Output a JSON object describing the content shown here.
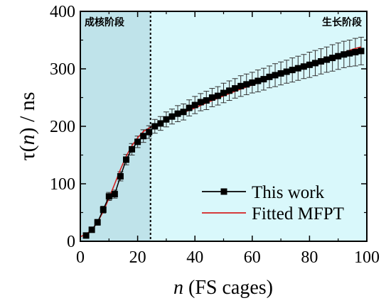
{
  "chart_data": {
    "type": "line",
    "xlim": [
      0,
      100
    ],
    "ylim": [
      0,
      400
    ],
    "xticks": [
      0,
      20,
      40,
      60,
      80,
      100
    ],
    "yticks": [
      0,
      100,
      200,
      300,
      400
    ],
    "x_minor_step": 10,
    "y_minor_step": 50,
    "xlabel_var": "n",
    "xlabel_rest": " (FS cages)",
    "ylabel_pre": "τ(",
    "ylabel_var": "n",
    "ylabel_post": ") / ns",
    "regions": [
      {
        "label": "成核阶段",
        "x_start": 0,
        "x_end": 24.5,
        "color": "#bfe3ea"
      },
      {
        "label": "生长阶段",
        "x_start": 24.5,
        "x_end": 100,
        "color": "#d9f8fb"
      }
    ],
    "divider_x": 24.5,
    "legend_position": "bottom-right",
    "series": [
      {
        "name": "This work",
        "marker": "square",
        "color": "#000000",
        "x": [
          2,
          4,
          6,
          8,
          10,
          12,
          14,
          16,
          18,
          20,
          22,
          24,
          26,
          28,
          30,
          32,
          34,
          36,
          38,
          40,
          42,
          44,
          46,
          48,
          50,
          52,
          54,
          56,
          58,
          60,
          62,
          64,
          66,
          68,
          70,
          72,
          74,
          76,
          78,
          80,
          82,
          84,
          86,
          88,
          90,
          92,
          94,
          96,
          98
        ],
        "y": [
          10,
          20,
          33,
          55,
          78,
          82,
          113,
          142,
          160,
          173,
          183,
          190,
          200,
          205,
          212,
          217,
          222,
          225,
          232,
          237,
          242,
          245,
          250,
          253,
          258,
          262,
          266,
          270,
          273,
          276,
          279,
          282,
          286,
          289,
          292,
          295,
          298,
          301,
          304,
          307,
          310,
          313,
          316,
          319,
          322,
          325,
          327,
          329,
          331
        ],
        "error": [
          4,
          4,
          5,
          6,
          7,
          7,
          8,
          9,
          10,
          10,
          11,
          11,
          12,
          12,
          13,
          13,
          14,
          14,
          14,
          15,
          15,
          16,
          16,
          16,
          17,
          17,
          17,
          18,
          18,
          18,
          19,
          19,
          19,
          20,
          20,
          20,
          21,
          21,
          21,
          22,
          22,
          22,
          22,
          23,
          23,
          23,
          23,
          24,
          24
        ]
      },
      {
        "name": "Fitted MFPT",
        "color": "#d42020",
        "x": [
          0,
          2,
          4,
          6,
          8,
          10,
          12,
          14,
          16,
          18,
          20,
          22,
          24,
          26,
          28,
          30,
          35,
          40,
          45,
          50,
          55,
          60,
          65,
          70,
          75,
          80,
          85,
          90,
          95,
          98
        ],
        "y": [
          8,
          12,
          20,
          33,
          52,
          75,
          100,
          125,
          148,
          166,
          180,
          191,
          197,
          202,
          207,
          211,
          222,
          232,
          243,
          253,
          263,
          272,
          281,
          290,
          299,
          308,
          316,
          325,
          334,
          338
        ]
      }
    ]
  }
}
